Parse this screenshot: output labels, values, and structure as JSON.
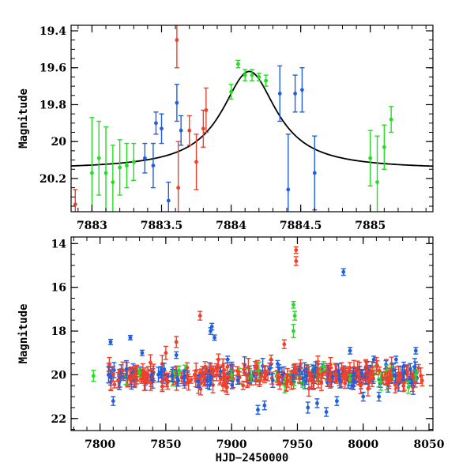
{
  "colors": {
    "green": "#22dd22",
    "blue": "#1f5fe0",
    "red": "#f0402a",
    "model": "#000000"
  },
  "chart_data": [
    {
      "type": "scatter",
      "name": "top",
      "xlabel": "",
      "ylabel": "Magnitude",
      "xlim": [
        7882.85,
        7885.45
      ],
      "ylim": [
        20.38,
        19.37
      ],
      "xticks": [
        7883,
        7883.5,
        7884,
        7884.5,
        7885
      ],
      "xtick_labels": [
        "7883",
        "7883.5",
        "7884",
        "7884.5",
        "7885"
      ],
      "yticks": [
        19.4,
        19.6,
        19.8,
        20,
        20.2
      ],
      "ytick_labels": [
        "19.4",
        "19.6",
        "19.8",
        "20",
        "20.2"
      ],
      "model_curve": {
        "type": "lorentzian",
        "baseline": 20.15,
        "peak": 19.62,
        "center": 7884.13,
        "width": 0.24
      },
      "series": [
        {
          "color": "green",
          "points": [
            [
              7883.0,
              20.17,
              0.3
            ],
            [
              7883.05,
              20.09,
              0.2
            ],
            [
              7883.1,
              20.17,
              0.25
            ],
            [
              7883.15,
              20.22,
              0.2
            ],
            [
              7883.2,
              20.14,
              0.15
            ],
            [
              7883.25,
              20.13,
              0.12
            ],
            [
              7883.3,
              20.11,
              0.1
            ],
            [
              7884.0,
              19.73,
              0.04
            ],
            [
              7884.05,
              19.58,
              0.02
            ],
            [
              7884.1,
              19.64,
              0.03
            ],
            [
              7884.15,
              19.64,
              0.03
            ],
            [
              7884.2,
              19.65,
              0.02
            ],
            [
              7884.25,
              19.67,
              0.03
            ],
            [
              7885.0,
              20.09,
              0.15
            ],
            [
              7885.05,
              20.22,
              0.25
            ],
            [
              7885.1,
              20.03,
              0.12
            ],
            [
              7885.15,
              19.88,
              0.07
            ]
          ]
        },
        {
          "color": "blue",
          "points": [
            [
              7883.38,
              20.09,
              0.08
            ],
            [
              7883.44,
              20.13,
              0.12
            ],
            [
              7883.46,
              19.9,
              0.06
            ],
            [
              7883.5,
              19.93,
              0.08
            ],
            [
              7883.55,
              20.32,
              0.1
            ],
            [
              7883.61,
              19.79,
              0.1
            ],
            [
              7883.64,
              19.94,
              0.08
            ],
            [
              7884.35,
              19.74,
              0.15
            ],
            [
              7884.41,
              20.26,
              0.3
            ],
            [
              7884.46,
              19.74,
              0.1
            ],
            [
              7884.51,
              19.72,
              0.12
            ],
            [
              7884.6,
              20.17,
              0.2
            ]
          ]
        },
        {
          "color": "red",
          "points": [
            [
              7882.88,
              20.34,
              0.08
            ],
            [
              7883.61,
              19.45,
              0.15
            ],
            [
              7883.62,
              20.25,
              0.25
            ],
            [
              7883.7,
              19.94,
              0.08
            ],
            [
              7883.75,
              20.11,
              0.15
            ],
            [
              7883.8,
              19.93,
              0.1
            ],
            [
              7883.82,
              19.83,
              0.12
            ]
          ]
        }
      ]
    },
    {
      "type": "scatter",
      "name": "bottom",
      "xlabel": "HJD−2450000",
      "ylabel": "Magnitude",
      "xlim": [
        7778,
        8053
      ],
      "ylim": [
        22.55,
        13.7
      ],
      "xticks": [
        7800,
        7850,
        7900,
        7950,
        8000,
        8050
      ],
      "xtick_labels": [
        "7800",
        "7850",
        "7900",
        "7950",
        "8000",
        "8050"
      ],
      "yticks": [
        14,
        16,
        18,
        20,
        22
      ],
      "ytick_labels": [
        "14",
        "16",
        "18",
        "20",
        "22"
      ],
      "series": [
        {
          "color": "green",
          "points": [
            [
              7795,
              20.05,
              0.25
            ],
            [
              7830,
              19.9,
              0.2
            ],
            [
              7860,
              19.8,
              0.2
            ],
            [
              7900,
              20.0,
              0.2
            ],
            [
              7947,
              16.8,
              0.15
            ],
            [
              7947,
              18.0,
              0.3
            ],
            [
              7948,
              17.3,
              0.2
            ],
            [
              7970,
              19.6,
              0.2
            ],
            [
              7990,
              20.2,
              0.2
            ],
            [
              8040,
              20.0,
              0.2
            ]
          ]
        },
        {
          "color": "blue",
          "points": [
            [
              7808,
              18.5,
              0.12
            ],
            [
              7823,
              18.3,
              0.1
            ],
            [
              7832,
              19.0,
              0.12
            ],
            [
              7858,
              19.1,
              0.15
            ],
            [
              7884,
              18.0,
              0.15
            ],
            [
              7885,
              17.8,
              0.15
            ],
            [
              7887,
              18.3,
              0.12
            ],
            [
              7897,
              19.3,
              0.15
            ],
            [
              7935,
              19.5,
              0.15
            ],
            [
              7985,
              15.3,
              0.15
            ],
            [
              7990,
              18.9,
              0.15
            ],
            [
              8008,
              19.3,
              0.15
            ],
            [
              8025,
              19.3,
              0.15
            ],
            [
              8040,
              18.9,
              0.15
            ],
            [
              7810,
              21.2,
              0.2
            ],
            [
              7920,
              21.6,
              0.2
            ],
            [
              7925,
              21.4,
              0.2
            ],
            [
              7958,
              21.5,
              0.25
            ],
            [
              7965,
              21.3,
              0.2
            ],
            [
              7972,
              21.7,
              0.2
            ],
            [
              7980,
              21.2,
              0.2
            ],
            [
              8000,
              21.0,
              0.2
            ],
            [
              8012,
              21.0,
              0.2
            ]
          ]
        },
        {
          "color": "red",
          "points": [
            [
              7949,
              14.3,
              0.15
            ],
            [
              7949,
              14.8,
              0.2
            ],
            [
              7876,
              17.3,
              0.2
            ],
            [
              7858,
              18.5,
              0.25
            ],
            [
              7940,
              18.6,
              0.2
            ],
            [
              7850,
              19.0,
              0.3
            ],
            [
              7890,
              19.3,
              0.25
            ],
            [
              7930,
              19.3,
              0.2
            ]
          ]
        }
      ],
      "band": {
        "note": "dense noisy baseline observations",
        "x_start": 7806,
        "x_end": 8045,
        "count": 420,
        "center": 20.05,
        "spread": 0.5,
        "error": 0.25
      }
    }
  ]
}
